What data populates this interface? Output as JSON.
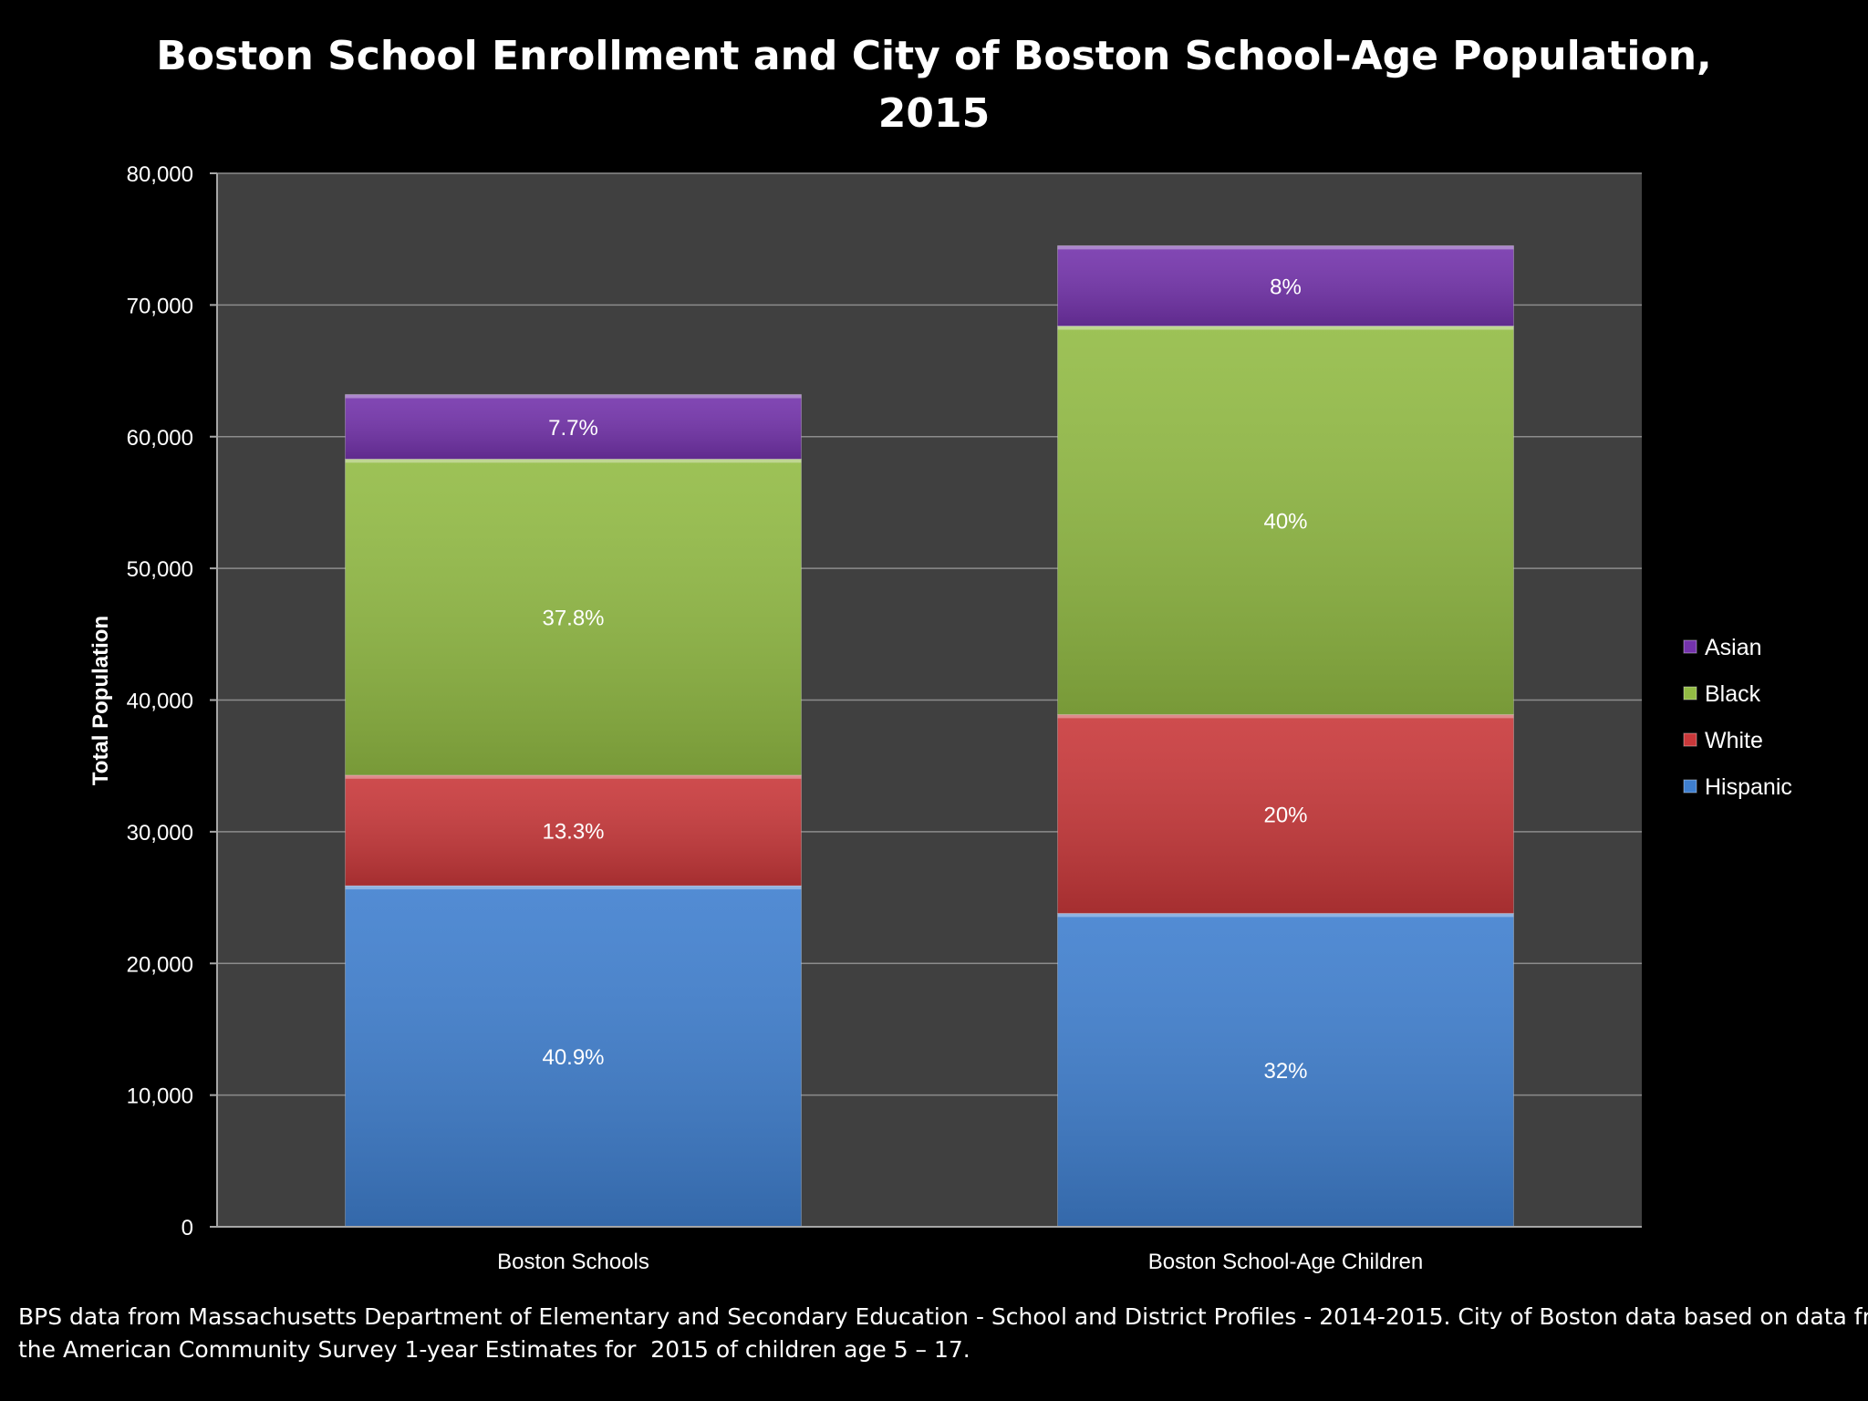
{
  "title_lines": [
    "Boston School Enrollment and City of Boston School-Age Population,",
    "2015"
  ],
  "footnote_lines": [
    "BPS data from Massachusetts Department of Elementary and Secondary Education - School and District Profiles - 2014-2015. City of Boston data based on data from",
    "the American Community Survey 1-year Estimates for  2015 of children age 5 – 17."
  ],
  "chart_data": {
    "type": "bar",
    "stacked": true,
    "title": "Boston School Enrollment and City of Boston School-Age Population, 2015",
    "xlabel": "",
    "ylabel": "Total Population",
    "ylim": [
      0,
      80000
    ],
    "yticks": [
      0,
      10000,
      20000,
      30000,
      40000,
      50000,
      60000,
      70000,
      80000
    ],
    "ytick_labels": [
      "0",
      "10,000",
      "20,000",
      "30,000",
      "40,000",
      "50,000",
      "60,000",
      "70,000",
      "80,000"
    ],
    "grid": true,
    "legend_position": "right",
    "categories": [
      "Boston Schools",
      "Boston School-Age Children"
    ],
    "series": [
      {
        "name": "Hispanic",
        "color": "#3f7fcf",
        "values": [
          25900,
          23800
        ],
        "labels": [
          "40.9%",
          "32%"
        ]
      },
      {
        "name": "White",
        "color": "#c9383a",
        "values": [
          8400,
          15100
        ],
        "labels": [
          "13.3%",
          "20%"
        ]
      },
      {
        "name": "Black",
        "color": "#92bb44",
        "values": [
          24000,
          29500
        ],
        "labels": [
          "37.8%",
          "40%"
        ]
      },
      {
        "name": "Asian",
        "color": "#7433ac",
        "values": [
          4900,
          6100
        ],
        "labels": [
          "7.7%",
          "8%"
        ]
      }
    ]
  }
}
